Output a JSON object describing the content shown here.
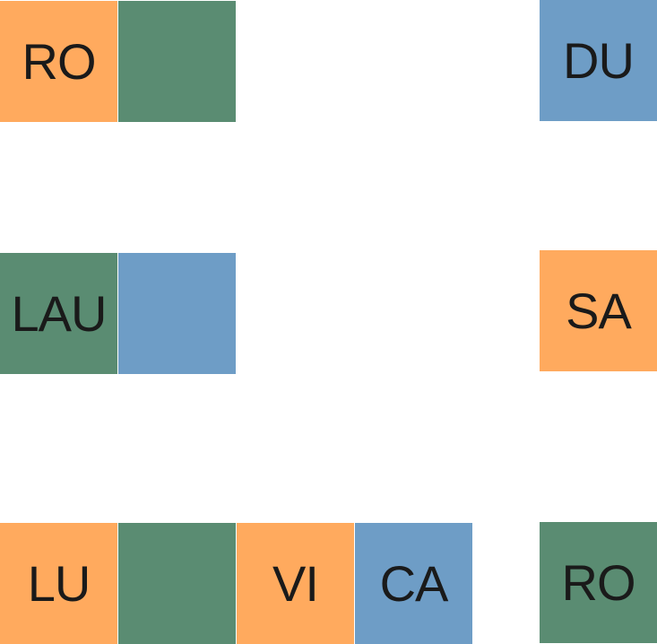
{
  "colors": {
    "orange": "#ffaa5e",
    "green": "#5a8c72",
    "blue": "#6e9dc6"
  },
  "tiles": {
    "r1c1": "RO",
    "r1c2": "",
    "r1c5": "DU",
    "r2c1": "LAU",
    "r2c2": "",
    "r2c5": "SA",
    "r3c1": "LU",
    "r3c2": "",
    "r3c3": "VI",
    "r3c4": "CA",
    "r3c5": "RO"
  }
}
